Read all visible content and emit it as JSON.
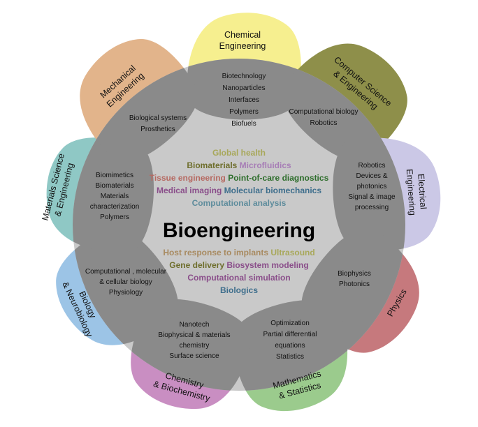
{
  "title": "Bioengineering",
  "petals": [
    {
      "id": "chemical",
      "label": [
        "Chemical",
        "Engineering"
      ],
      "color": "#f6ef8f",
      "overlap": [
        "Biotechnology",
        "Nanoparticles",
        "Interfaces",
        "Polymers",
        "Biofuels"
      ]
    },
    {
      "id": "computer",
      "label": [
        "Computer Science",
        "& Engineering"
      ],
      "color": "#8e8f4a",
      "overlap": [
        "Computational biology",
        "Robotics"
      ]
    },
    {
      "id": "electrical",
      "label": [
        "Electrical",
        "Engineering"
      ],
      "color": "#cbc8e6",
      "overlap": [
        "Robotics",
        "Devices &",
        "photonics",
        "Signal & image",
        "processing"
      ]
    },
    {
      "id": "physics",
      "label": [
        "Physics"
      ],
      "color": "#c6797d",
      "overlap": [
        "Biophysics",
        "Photonics"
      ]
    },
    {
      "id": "math",
      "label": [
        "Mathematics",
        "& Statistics"
      ],
      "color": "#9bcb8d",
      "overlap": [
        "Optimization",
        "Partial differential",
        "equations",
        "Statistics"
      ]
    },
    {
      "id": "chemistry",
      "label": [
        "Chemistry",
        "& Biochemistry"
      ],
      "color": "#c98ec2",
      "overlap": [
        "Nanotech",
        "Biophysical & materials",
        "chemistry",
        "Surface science"
      ]
    },
    {
      "id": "biology",
      "label": [
        "Biology",
        "& Neurobiology"
      ],
      "color": "#9cc4e6",
      "overlap": [
        "Computational , molecular",
        "& cellular biology",
        "Physiology"
      ]
    },
    {
      "id": "materials",
      "label": [
        "Materials Science",
        "& Engineering"
      ],
      "color": "#8fc8c5",
      "overlap": [
        "Biomimetics",
        "Biomaterials",
        "Materials",
        "characterization",
        "Polymers"
      ]
    },
    {
      "id": "mechanical",
      "label": [
        "Mechanical",
        "Engineering"
      ],
      "color": "#e2b48b",
      "overlap": [
        "Biological systems",
        "Prosthetics"
      ]
    }
  ],
  "topics_upper": [
    [
      {
        "text": "Global health",
        "color": "#a8a85a"
      }
    ],
    [
      {
        "text": "Biomaterials",
        "color": "#6e6e2c"
      },
      {
        "text": "Microfluidics",
        "color": "#a77eb6"
      }
    ],
    [
      {
        "text": "Tissue engineering",
        "color": "#b66a62"
      },
      {
        "text": "Point-of-care diagnostics",
        "color": "#2e6e2c"
      }
    ],
    [
      {
        "text": "Medical imaging",
        "color": "#8a4e8a"
      },
      {
        "text": "Molecular biomechanics",
        "color": "#3e6e8c"
      }
    ],
    [
      {
        "text": "Computational analysis",
        "color": "#5e8c9c"
      }
    ]
  ],
  "topics_lower": [
    [
      {
        "text": "Host response to implants",
        "color": "#a88a60"
      },
      {
        "text": "Ultrasound",
        "color": "#a8a85a"
      }
    ],
    [
      {
        "text": "Gene delivery",
        "color": "#6e6e2c"
      },
      {
        "text": "Biosystem modeling",
        "color": "#8a4e8a"
      }
    ],
    [
      {
        "text": "Computational simulation",
        "color": "#8a4e8a"
      }
    ],
    [
      {
        "text": "Biologics",
        "color": "#3e6e8c"
      }
    ]
  ]
}
